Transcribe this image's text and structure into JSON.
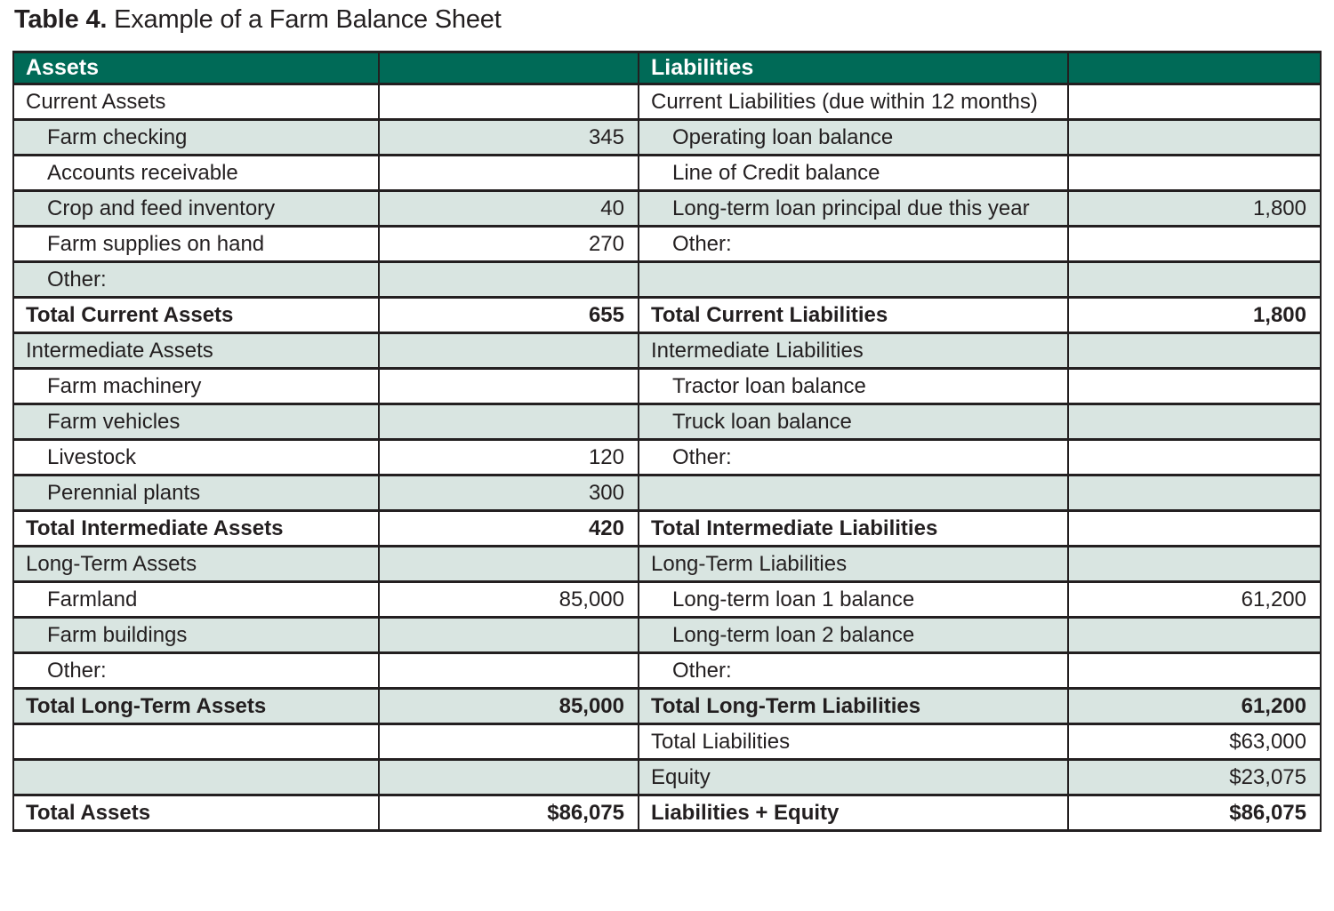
{
  "title": {
    "prefix": "Table 4.",
    "text": " Example of a Farm Balance Sheet"
  },
  "colors": {
    "header_bg": "#006a57",
    "header_text": "#ffffff",
    "row_green": "#d9e5e1",
    "row_white": "#ffffff",
    "border": "#231f20",
    "text": "#231f20"
  },
  "table": {
    "headers": {
      "assets": "Assets",
      "assets_value": "",
      "liabilities": "Liabilities",
      "liabilities_value": ""
    },
    "rows": [
      {
        "asset_label": "Current Assets",
        "asset_indent": false,
        "asset_value": "",
        "liability_label": "Current Liabilities (due within 12 months)",
        "liability_indent": false,
        "liability_value": "",
        "bold": false,
        "shade": "white"
      },
      {
        "asset_label": "Farm checking",
        "asset_indent": true,
        "asset_value": "345",
        "liability_label": "Operating loan balance",
        "liability_indent": true,
        "liability_value": "",
        "bold": false,
        "shade": "green"
      },
      {
        "asset_label": "Accounts receivable",
        "asset_indent": true,
        "asset_value": "",
        "liability_label": "Line of Credit balance",
        "liability_indent": true,
        "liability_value": "",
        "bold": false,
        "shade": "white"
      },
      {
        "asset_label": "Crop and feed inventory",
        "asset_indent": true,
        "asset_value": "40",
        "liability_label": "Long-term loan principal due this year",
        "liability_indent": true,
        "liability_value": "1,800",
        "bold": false,
        "shade": "green"
      },
      {
        "asset_label": "Farm supplies on hand",
        "asset_indent": true,
        "asset_value": "270",
        "liability_label": "Other:",
        "liability_indent": true,
        "liability_value": "",
        "bold": false,
        "shade": "white"
      },
      {
        "asset_label": "Other:",
        "asset_indent": true,
        "asset_value": "",
        "liability_label": "",
        "liability_indent": false,
        "liability_value": "",
        "bold": false,
        "shade": "green"
      },
      {
        "asset_label": "Total Current Assets",
        "asset_indent": false,
        "asset_value": "655",
        "liability_label": "Total Current Liabilities",
        "liability_indent": false,
        "liability_value": "1,800",
        "bold": true,
        "shade": "white"
      },
      {
        "asset_label": "Intermediate Assets",
        "asset_indent": false,
        "asset_value": "",
        "liability_label": "Intermediate Liabilities",
        "liability_indent": false,
        "liability_value": "",
        "bold": false,
        "shade": "green"
      },
      {
        "asset_label": "Farm machinery",
        "asset_indent": true,
        "asset_value": "",
        "liability_label": "Tractor loan balance",
        "liability_indent": true,
        "liability_value": "",
        "bold": false,
        "shade": "white"
      },
      {
        "asset_label": "Farm vehicles",
        "asset_indent": true,
        "asset_value": "",
        "liability_label": "Truck loan balance",
        "liability_indent": true,
        "liability_value": "",
        "bold": false,
        "shade": "green"
      },
      {
        "asset_label": "Livestock",
        "asset_indent": true,
        "asset_value": "120",
        "liability_label": "Other:",
        "liability_indent": true,
        "liability_value": "",
        "bold": false,
        "shade": "white"
      },
      {
        "asset_label": "Perennial plants",
        "asset_indent": true,
        "asset_value": "300",
        "liability_label": "",
        "liability_indent": false,
        "liability_value": "",
        "bold": false,
        "shade": "green"
      },
      {
        "asset_label": "Total Intermediate Assets",
        "asset_indent": false,
        "asset_value": "420",
        "liability_label": "Total Intermediate Liabilities",
        "liability_indent": false,
        "liability_value": "",
        "bold": true,
        "shade": "white"
      },
      {
        "asset_label": "Long-Term Assets",
        "asset_indent": false,
        "asset_value": "",
        "liability_label": "Long-Term Liabilities",
        "liability_indent": false,
        "liability_value": "",
        "bold": false,
        "shade": "green"
      },
      {
        "asset_label": "Farmland",
        "asset_indent": true,
        "asset_value": "85,000",
        "liability_label": "Long-term loan 1 balance",
        "liability_indent": true,
        "liability_value": "61,200",
        "bold": false,
        "shade": "white"
      },
      {
        "asset_label": "Farm buildings",
        "asset_indent": true,
        "asset_value": "",
        "liability_label": "Long-term loan 2 balance",
        "liability_indent": true,
        "liability_value": "",
        "bold": false,
        "shade": "green"
      },
      {
        "asset_label": "Other:",
        "asset_indent": true,
        "asset_value": "",
        "liability_label": "Other:",
        "liability_indent": true,
        "liability_value": "",
        "bold": false,
        "shade": "white"
      },
      {
        "asset_label": "Total Long-Term Assets",
        "asset_indent": false,
        "asset_value": "85,000",
        "liability_label": "Total Long-Term Liabilities",
        "liability_indent": false,
        "liability_value": "61,200",
        "bold": true,
        "shade": "green"
      },
      {
        "asset_label": "",
        "asset_indent": false,
        "asset_value": "",
        "liability_label": "Total Liabilities",
        "liability_indent": false,
        "liability_value": "$63,000",
        "bold": false,
        "shade": "white"
      },
      {
        "asset_label": "",
        "asset_indent": false,
        "asset_value": "",
        "liability_label": "Equity",
        "liability_indent": false,
        "liability_value": "$23,075",
        "bold": false,
        "shade": "green"
      },
      {
        "asset_label": "Total Assets",
        "asset_indent": false,
        "asset_value": "$86,075",
        "liability_label": "Liabilities + Equity",
        "liability_indent": false,
        "liability_value": "$86,075",
        "bold": true,
        "shade": "white"
      }
    ]
  }
}
